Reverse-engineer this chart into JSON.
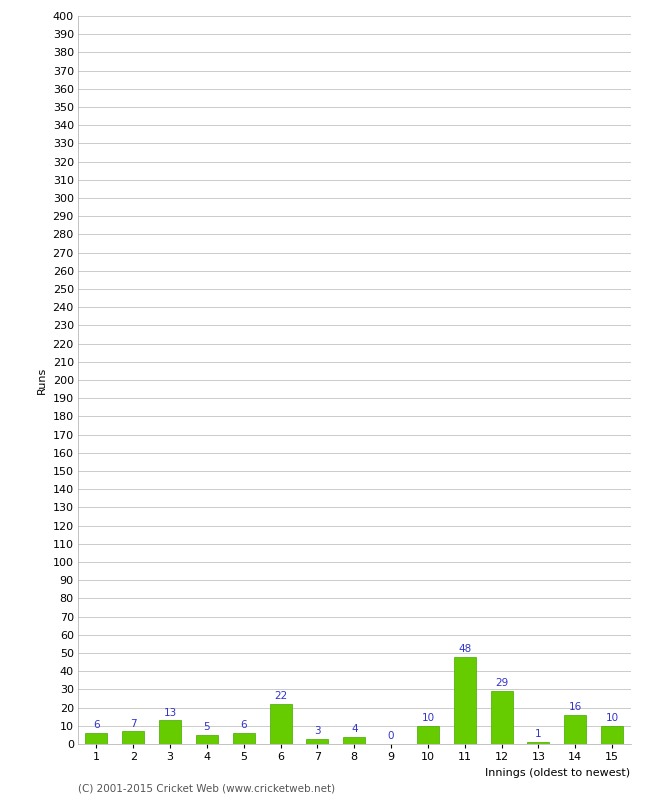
{
  "xlabel": "Innings (oldest to newest)",
  "ylabel": "Runs",
  "categories": [
    1,
    2,
    3,
    4,
    5,
    6,
    7,
    8,
    9,
    10,
    11,
    12,
    13,
    14,
    15
  ],
  "values": [
    6,
    7,
    13,
    5,
    6,
    22,
    3,
    4,
    0,
    10,
    48,
    29,
    1,
    16,
    10
  ],
  "bar_color": "#66cc00",
  "bar_edge_color": "#44aa00",
  "label_color": "#3333cc",
  "ylim": [
    0,
    400
  ],
  "yticks": [
    0,
    10,
    20,
    30,
    40,
    50,
    60,
    70,
    80,
    90,
    100,
    110,
    120,
    130,
    140,
    150,
    160,
    170,
    180,
    190,
    200,
    210,
    220,
    230,
    240,
    250,
    260,
    270,
    280,
    290,
    300,
    310,
    320,
    330,
    340,
    350,
    360,
    370,
    380,
    390,
    400
  ],
  "grid_color": "#cccccc",
  "bg_color": "#ffffff",
  "footer": "(C) 2001-2015 Cricket Web (www.cricketweb.net)",
  "footer_color": "#555555",
  "label_fontsize": 7.5,
  "axis_fontsize": 8,
  "ylabel_fontsize": 8,
  "xlabel_fontsize": 8,
  "footer_fontsize": 7.5
}
